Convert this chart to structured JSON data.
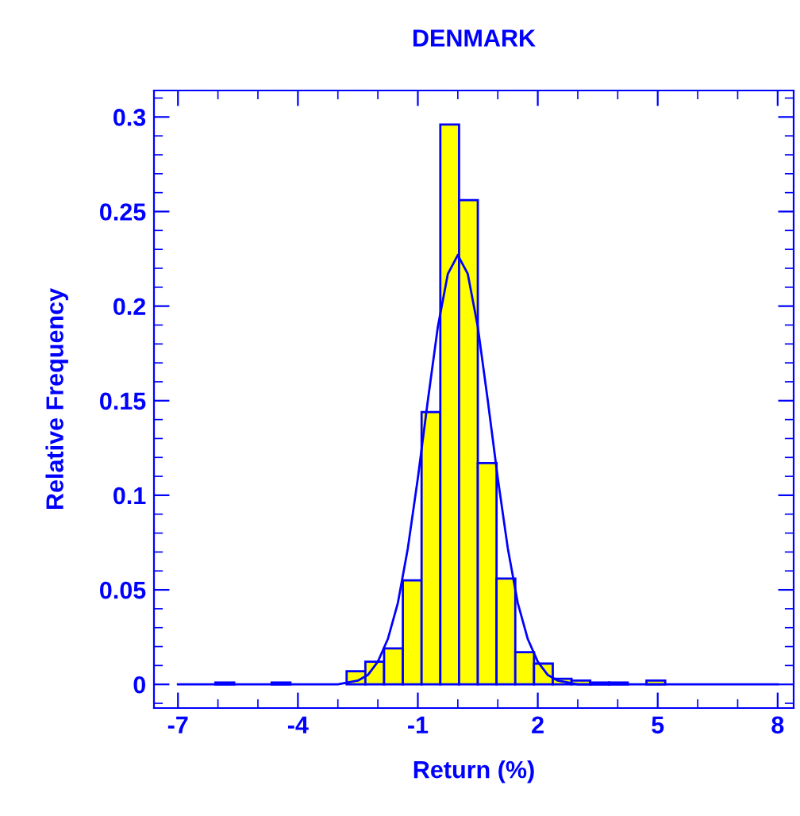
{
  "chart_data": {
    "type": "histogram",
    "title": "DENMARK",
    "xlabel": "Return (%)",
    "ylabel": "Relative Frequency",
    "color": "#ffff00",
    "bins": [
      -7,
      -6.53125,
      -6.0625,
      -5.59375,
      -5.125,
      -4.65625,
      -4.1875,
      -3.71875,
      -3.25,
      -2.78125,
      -2.3125,
      -1.84375,
      -1.375,
      -0.90625,
      -0.4375,
      0.03125,
      0.5,
      0.96875,
      1.4375,
      1.90625,
      2.375,
      2.84375,
      3.3125,
      3.78125,
      4.25,
      4.71875,
      5.1875,
      5.65625,
      6.125,
      6.59375,
      7.0625,
      7.53125,
      8
    ],
    "values": [
      0,
      0,
      0.001,
      0,
      0,
      0.001,
      0,
      0,
      0,
      0.007,
      0.012,
      0.019,
      0.055,
      0.144,
      0.296,
      0.256,
      0.117,
      0.056,
      0.017,
      0.011,
      0.003,
      0.002,
      0.001,
      0.001,
      0,
      0.002,
      0,
      0,
      0,
      0,
      0,
      0
    ],
    "series": [
      {
        "type": "line",
        "color": "#0000ff",
        "x": [
          -7,
          -3.5,
          -3,
          -2.5,
          -2.25,
          -2,
          -1.75,
          -1.5,
          -1.25,
          -1,
          -0.75,
          -0.5,
          -0.25,
          0,
          0.25,
          0.5,
          0.75,
          1,
          1.25,
          1.5,
          1.75,
          2,
          2.25,
          2.5,
          3,
          3.5,
          8
        ],
        "values": [
          0,
          0,
          0,
          0.002,
          0.005,
          0.012,
          0.024,
          0.043,
          0.072,
          0.109,
          0.15,
          0.189,
          0.217,
          0.227,
          0.217,
          0.189,
          0.15,
          0.109,
          0.072,
          0.043,
          0.024,
          0.012,
          0.005,
          0.002,
          0,
          0,
          0
        ]
      }
    ],
    "xlim": [
      -7.6,
      8.4
    ],
    "xticks": [
      -7,
      -4,
      -1,
      2,
      5,
      8
    ],
    "ylim": [
      -0.0125,
      0.314
    ],
    "yticks": [
      0,
      {
        "value": 0.05,
        "label": "0.05"
      },
      {
        "value": 0.1,
        "label": "0.1"
      },
      {
        "value": 0.15,
        "label": "0.15"
      },
      {
        "value": 0.2,
        "label": "0.2"
      },
      {
        "value": 0.25,
        "label": "0.25"
      },
      {
        "value": 0.3,
        "label": "0.3"
      }
    ],
    "grid": false,
    "legend": false
  }
}
